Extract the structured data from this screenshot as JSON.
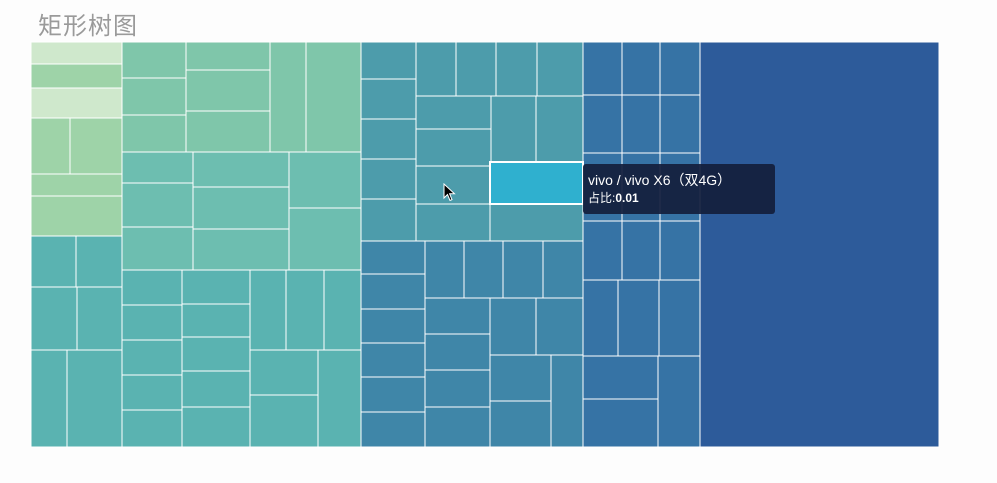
{
  "page": {
    "title": "矩形树图"
  },
  "tooltip": {
    "name": "vivo / vivo X6（双4G）",
    "ratio_label": "占比:",
    "ratio_value": "0.01"
  },
  "chart_data": {
    "type": "treemap",
    "title": "矩形树图",
    "colors": [
      "#cfe8cc",
      "#9ed3a8",
      "#7fc6aa",
      "#6dbeb0",
      "#5ab3b1",
      "#4d9cab",
      "#3f86a8",
      "#3673a5",
      "#2d5b9a"
    ],
    "highlight_color": "#2fb0cf",
    "highlighted": "vivo X6（双4G）"
  }
}
